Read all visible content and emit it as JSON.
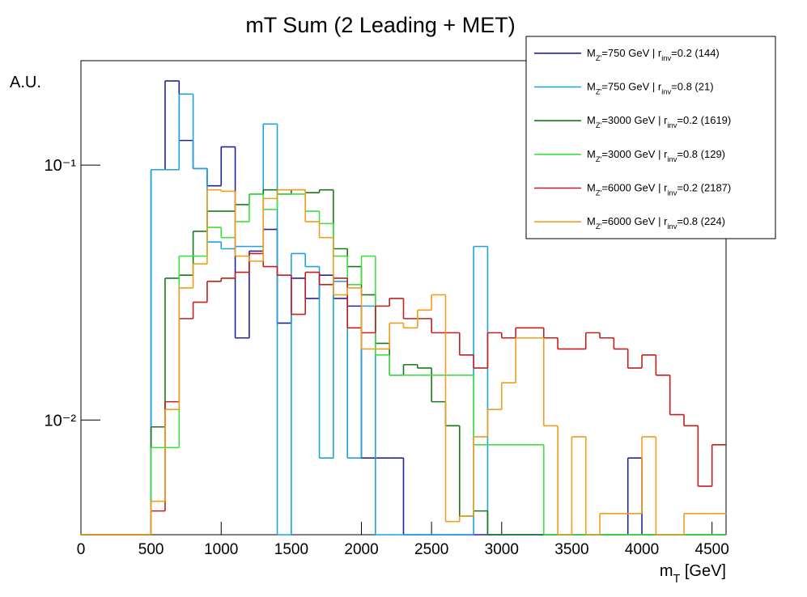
{
  "chart_data": {
    "type": "histogram",
    "title": "mT Sum (2 Leading + MET)",
    "xlabel": "m_{T} [GeV]",
    "ylabel": "A.U.",
    "bins": [
      0,
      100,
      200,
      300,
      400,
      500,
      600,
      700,
      800,
      900,
      1000,
      1100,
      1200,
      1300,
      1400,
      1500,
      1600,
      1700,
      1800,
      1900,
      2000,
      2100,
      2200,
      2300,
      2400,
      2500,
      2600,
      2700,
      2800,
      2900,
      3000,
      3100,
      3200,
      3300,
      3400,
      3500,
      3600,
      3700,
      3800,
      3900,
      4000,
      4100,
      4200,
      4300,
      4400,
      4500,
      4600
    ],
    "xlim": [
      0,
      4600
    ],
    "xticks": [
      0,
      500,
      1000,
      1500,
      2000,
      2500,
      3000,
      3500,
      4000,
      4500
    ],
    "ylim": [
      0.00355,
      0.257
    ],
    "yticks": [
      {
        "value": 0.1,
        "label": "10⁻¹"
      },
      {
        "value": 0.01,
        "label": "10⁻²"
      }
    ],
    "log_y": true,
    "legend": "upper right",
    "series": [
      {
        "name": "M_{Z'}=750 GeV | r_{inv}=0.2 (144)",
        "color": "#23239b",
        "values": [
          0,
          0,
          0,
          0,
          0,
          0.096,
          0.214,
          0.125,
          0.097,
          0.083,
          0.118,
          0.021,
          0.046,
          0.056,
          0.024,
          0.036,
          0.03,
          0.037,
          0.03,
          0.028,
          0.0071,
          0.0071,
          0.0071,
          0,
          0,
          0,
          0,
          0,
          0,
          0,
          0,
          0,
          0,
          0,
          0,
          0,
          0,
          0,
          0,
          0.0071,
          0,
          0,
          0,
          0,
          0,
          0
        ]
      },
      {
        "name": "M_{Z'}=750 GeV | r_{inv}=0.8 (21)",
        "color": "#1fa3dc",
        "values": [
          0,
          0,
          0,
          0,
          0,
          0.096,
          0.096,
          0.19,
          0.097,
          0.05,
          0.047,
          0.048,
          0.048,
          0.145,
          0,
          0.045,
          0.04,
          0.0071,
          0.035,
          0.0071,
          0.028,
          0,
          0,
          0,
          0,
          0,
          0,
          0,
          0.048,
          0,
          0,
          0,
          0,
          0,
          0,
          0,
          0,
          0,
          0,
          0,
          0,
          0,
          0,
          0,
          0,
          0
        ]
      },
      {
        "name": "M_{Z'}=3000 GeV | r_{inv}=0.2 (1619)",
        "color": "#1a781a",
        "values": [
          0,
          0,
          0,
          0,
          0,
          0.0094,
          0.036,
          0.037,
          0.055,
          0.066,
          0.066,
          0.07,
          0.077,
          0.08,
          0.077,
          0.08,
          0.078,
          0.08,
          0.047,
          0.04,
          0.031,
          0.02,
          0.015,
          0.0165,
          0.016,
          0.0118,
          0.0095,
          0.0042,
          0.0044,
          0,
          0,
          0,
          0,
          0,
          0,
          0,
          0,
          0,
          0,
          0,
          0,
          0,
          0,
          0,
          0,
          0
        ]
      },
      {
        "name": "M_{Z'}=3000 GeV | r_{inv}=0.8 (129)",
        "color": "#40e040",
        "values": [
          0,
          0,
          0,
          0,
          0,
          0.0078,
          0.0078,
          0.044,
          0.044,
          0.057,
          0.052,
          0.06,
          0.077,
          0.067,
          0.077,
          0.077,
          0.066,
          0.059,
          0.044,
          0.034,
          0.044,
          0.018,
          0.015,
          0.015,
          0.015,
          0.015,
          0.015,
          0.015,
          0.008,
          0.008,
          0.008,
          0.008,
          0.008,
          0,
          0,
          0,
          0,
          0,
          0,
          0,
          0,
          0,
          0,
          0,
          0,
          0
        ]
      },
      {
        "name": "M_{Z'}=6000 GeV | r_{inv}=0.2 (2187)",
        "color": "#c41e1e",
        "values": [
          0,
          0,
          0,
          0,
          0,
          0.0044,
          0.0118,
          0.025,
          0.029,
          0.035,
          0.036,
          0.038,
          0.045,
          0.04,
          0.037,
          0.026,
          0.038,
          0.034,
          0.036,
          0.023,
          0.022,
          0.028,
          0.03,
          0.025,
          0.025,
          0.022,
          0.022,
          0.018,
          0.016,
          0.022,
          0.021,
          0.023,
          0.023,
          0.021,
          0.019,
          0.019,
          0.022,
          0.021,
          0.019,
          0.016,
          0.018,
          0.015,
          0.0105,
          0.0095,
          0.0055,
          0.008
        ]
      },
      {
        "name": "M_{Z'}=6000 GeV | r_{inv}=0.8 (224)",
        "color": "#f39c1f",
        "values": [
          0,
          0,
          0,
          0,
          0,
          0.0048,
          0.011,
          0.033,
          0.041,
          0.08,
          0.079,
          0.044,
          0.042,
          0.074,
          0.08,
          0.08,
          0.06,
          0.052,
          0.031,
          0.033,
          0.019,
          0.019,
          0.024,
          0.023,
          0.027,
          0.031,
          0.004,
          0.0042,
          0.0086,
          0.011,
          0.014,
          0.021,
          0.021,
          0.0095,
          0,
          0.0086,
          0,
          0.0043,
          0.0043,
          0.0043,
          0.0086,
          0,
          0,
          0.0043,
          0.0043,
          0.0043
        ]
      }
    ]
  }
}
